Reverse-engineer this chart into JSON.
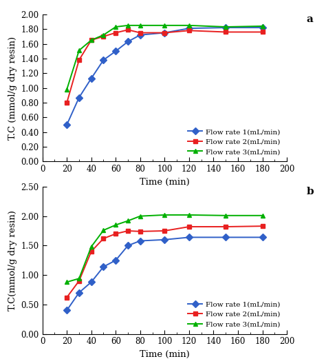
{
  "subplot_a": {
    "label": "a",
    "ylabel": "T.C (mmol/g dry resin)",
    "xlabel": "Time (min)",
    "ylim": [
      0.0,
      2.0
    ],
    "yticks": [
      0.0,
      0.2,
      0.4,
      0.6,
      0.8,
      1.0,
      1.2,
      1.4,
      1.6,
      1.8,
      2.0
    ],
    "xlim": [
      0,
      200
    ],
    "xticks": [
      0,
      20,
      40,
      60,
      80,
      100,
      120,
      140,
      160,
      180,
      200
    ],
    "series": [
      {
        "label": "Flow rate 1(mL/min)",
        "color": "#3060c8",
        "marker": "D",
        "x": [
          20,
          30,
          40,
          50,
          60,
          70,
          80,
          100,
          120,
          150,
          180
        ],
        "y": [
          0.5,
          0.87,
          1.13,
          1.38,
          1.5,
          1.63,
          1.72,
          1.75,
          1.81,
          1.82,
          1.82
        ]
      },
      {
        "label": "Flow rate 2(mL/min)",
        "color": "#e82020",
        "marker": "s",
        "x": [
          20,
          30,
          40,
          50,
          60,
          70,
          80,
          100,
          120,
          150,
          180
        ],
        "y": [
          0.8,
          1.38,
          1.65,
          1.7,
          1.75,
          1.79,
          1.75,
          1.75,
          1.78,
          1.76,
          1.76
        ]
      },
      {
        "label": "Flow rate 3(mL/min)",
        "color": "#00b000",
        "marker": "^",
        "x": [
          20,
          30,
          40,
          50,
          60,
          70,
          80,
          100,
          120,
          150,
          180
        ],
        "y": [
          0.98,
          1.51,
          1.65,
          1.72,
          1.83,
          1.85,
          1.85,
          1.85,
          1.85,
          1.83,
          1.84
        ]
      }
    ]
  },
  "subplot_b": {
    "label": "b",
    "ylabel": "T.C(mmol/g dry resin)",
    "xlabel": "Time (min)",
    "ylim": [
      0.0,
      2.5
    ],
    "yticks": [
      0.0,
      0.5,
      1.0,
      1.5,
      2.0,
      2.5
    ],
    "xlim": [
      0,
      200
    ],
    "xticks": [
      0,
      20,
      40,
      60,
      80,
      100,
      120,
      140,
      160,
      180,
      200
    ],
    "series": [
      {
        "label": "Flow rate 1(mL/min)",
        "color": "#3060c8",
        "marker": "D",
        "x": [
          20,
          30,
          40,
          50,
          60,
          70,
          80,
          100,
          120,
          150,
          180
        ],
        "y": [
          0.4,
          0.7,
          0.88,
          1.14,
          1.25,
          1.5,
          1.58,
          1.6,
          1.64,
          1.64,
          1.64
        ]
      },
      {
        "label": "Flow rate 2(mL/min)",
        "color": "#e82020",
        "marker": "s",
        "x": [
          20,
          30,
          40,
          50,
          60,
          70,
          80,
          100,
          120,
          150,
          180
        ],
        "y": [
          0.62,
          0.9,
          1.4,
          1.62,
          1.7,
          1.75,
          1.74,
          1.75,
          1.82,
          1.82,
          1.83
        ]
      },
      {
        "label": "Flow rate 3(mL/min)",
        "color": "#00b000",
        "marker": "^",
        "x": [
          20,
          30,
          40,
          50,
          60,
          70,
          80,
          100,
          120,
          150,
          180
        ],
        "y": [
          0.88,
          0.94,
          1.48,
          1.76,
          1.85,
          1.92,
          2.0,
          2.02,
          2.02,
          2.01,
          2.01
        ]
      }
    ]
  },
  "line_width": 1.4,
  "marker_size": 5,
  "tick_fontsize": 8.5,
  "label_fontsize": 9.5,
  "panel_label_fontsize": 11
}
